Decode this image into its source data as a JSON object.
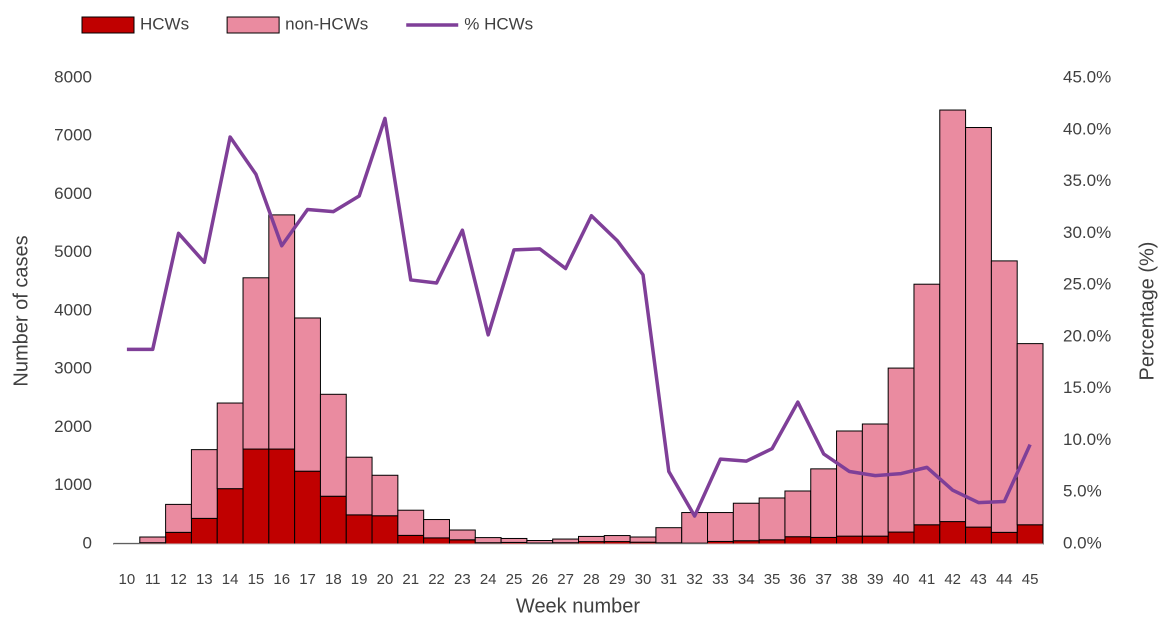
{
  "chart_data": {
    "type": "bar",
    "stacked": true,
    "xlabel": "Week number",
    "ylabel": "Number of cases",
    "y2label": "Percentage (%)",
    "categories": [
      "10",
      "11",
      "12",
      "13",
      "14",
      "15",
      "16",
      "17",
      "18",
      "19",
      "20",
      "21",
      "22",
      "23",
      "24",
      "25",
      "26",
      "27",
      "28",
      "29",
      "30",
      "31",
      "32",
      "33",
      "34",
      "35",
      "36",
      "37",
      "38",
      "39",
      "40",
      "41",
      "42",
      "43",
      "44",
      "45"
    ],
    "series": [
      {
        "name": "HCWs",
        "type": "bar",
        "color": "#c00000",
        "values": [
          2,
          22,
          200,
          440,
          950,
          1630,
          1630,
          1250,
          820,
          500,
          485,
          148,
          105,
          72,
          22,
          27,
          17,
          22,
          41,
          42,
          31,
          20,
          15,
          44,
          56,
          72,
          125,
          113,
          135,
          135,
          205,
          330,
          385,
          290,
          200,
          330
        ]
      },
      {
        "name": "non-HCWs",
        "type": "bar",
        "color": "#ea8ba0",
        "values": [
          8,
          98,
          480,
          1180,
          1470,
          2940,
          4020,
          2630,
          1750,
          990,
          695,
          432,
          315,
          168,
          88,
          68,
          43,
          63,
          89,
          103,
          89,
          260,
          525,
          496,
          644,
          718,
          785,
          1177,
          1805,
          1925,
          2815,
          4130,
          7065,
          6860,
          4660,
          3110
        ]
      },
      {
        "name": "% HCWs",
        "type": "line",
        "axis": "y2",
        "color": "#7f3f98",
        "values": [
          18.8,
          18.8,
          30.0,
          27.2,
          39.3,
          35.7,
          28.8,
          32.3,
          32.1,
          33.6,
          41.1,
          25.5,
          25.2,
          30.3,
          20.2,
          28.4,
          28.5,
          26.6,
          31.7,
          29.3,
          26.0,
          7.0,
          2.7,
          8.2,
          8.0,
          9.2,
          13.7,
          8.7,
          7.0,
          6.6,
          6.8,
          7.4,
          5.2,
          4.0,
          4.1,
          9.6
        ]
      }
    ],
    "ylim": [
      0,
      8000
    ],
    "yticks": [
      0,
      1000,
      2000,
      3000,
      4000,
      5000,
      6000,
      7000,
      8000
    ],
    "y2lim": [
      0,
      45
    ],
    "y2ticks": [
      {
        "value": 0,
        "label": "0.0%"
      },
      {
        "value": 5,
        "label": "5.0%"
      },
      {
        "value": 10,
        "label": "10.0%"
      },
      {
        "value": 15,
        "label": "15.0%"
      },
      {
        "value": 20,
        "label": "20.0%"
      },
      {
        "value": 25,
        "label": "25.0%"
      },
      {
        "value": 30,
        "label": "30.0%"
      },
      {
        "value": 35,
        "label": "35.0%"
      },
      {
        "value": 40,
        "label": "40.0%"
      },
      {
        "value": 45,
        "label": "45.0%"
      }
    ],
    "legend": "top-left",
    "grid": false
  }
}
